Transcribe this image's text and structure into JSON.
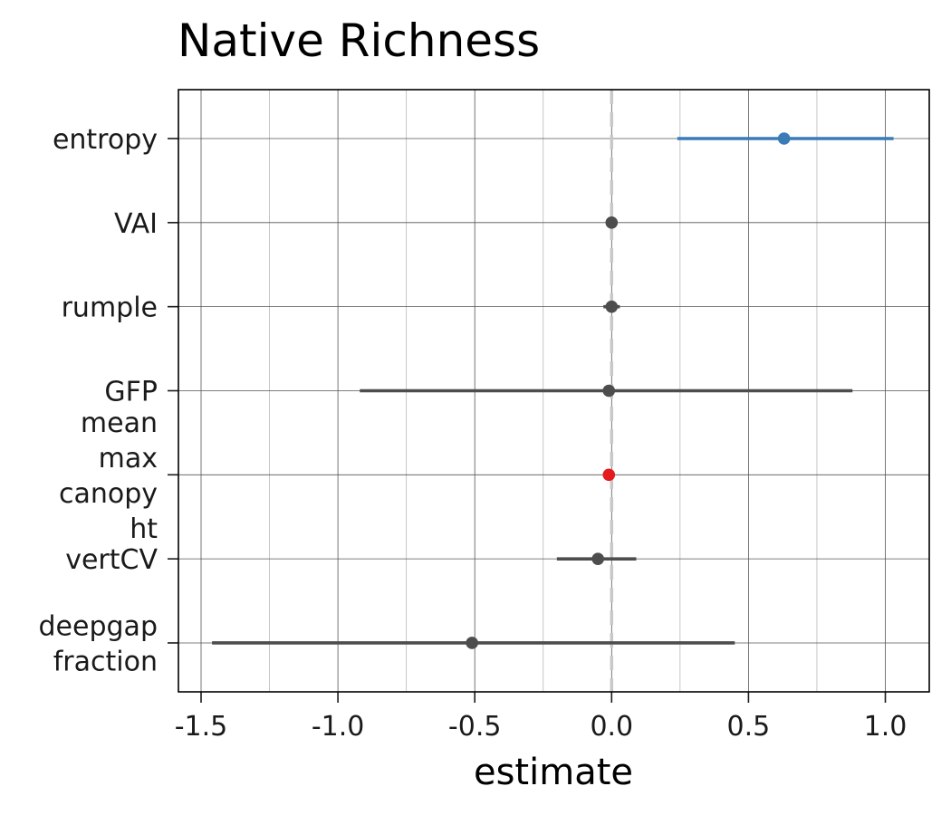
{
  "colors": {
    "default": "#4d4d4d",
    "positive": "#3a7bb8",
    "highlight": "#e41a1c",
    "zero_line": "#c8c8c8",
    "grid_major": "#555555",
    "grid_minor": "#b8b8b8"
  },
  "chart_data": {
    "type": "scatter",
    "subtype": "coefficient-plot",
    "title": "Native Richness",
    "xlabel": "estimate",
    "ylabel": "",
    "xlim": [
      -1.6,
      1.15
    ],
    "xticks": [
      -1.5,
      -1.0,
      -0.5,
      0.0,
      0.5,
      1.0
    ],
    "xtick_labels": [
      "-1.5",
      "-1.0",
      "-0.5",
      "0.0",
      "0.5",
      "1.0"
    ],
    "zero_line": 0,
    "grid": true,
    "categories": [
      {
        "label_lines": [
          "entropy"
        ],
        "estimate": 0.63,
        "lower": 0.24,
        "upper": 1.03,
        "color": "positive"
      },
      {
        "label_lines": [
          "VAI"
        ],
        "estimate": 0.0,
        "lower": 0.0,
        "upper": 0.0,
        "color": "default"
      },
      {
        "label_lines": [
          "rumple"
        ],
        "estimate": 0.0,
        "lower": -0.03,
        "upper": 0.03,
        "color": "default"
      },
      {
        "label_lines": [
          "GFP"
        ],
        "estimate": -0.01,
        "lower": -0.92,
        "upper": 0.88,
        "color": "default"
      },
      {
        "label_lines": [
          "mean",
          "max",
          "canopy",
          "ht"
        ],
        "estimate": -0.01,
        "lower": -0.01,
        "upper": -0.01,
        "color": "highlight"
      },
      {
        "label_lines": [
          "vertCV"
        ],
        "estimate": -0.05,
        "lower": -0.2,
        "upper": 0.09,
        "color": "default"
      },
      {
        "label_lines": [
          "deepgap",
          "fraction"
        ],
        "estimate": -0.51,
        "lower": -1.46,
        "upper": 0.45,
        "color": "default"
      }
    ]
  }
}
